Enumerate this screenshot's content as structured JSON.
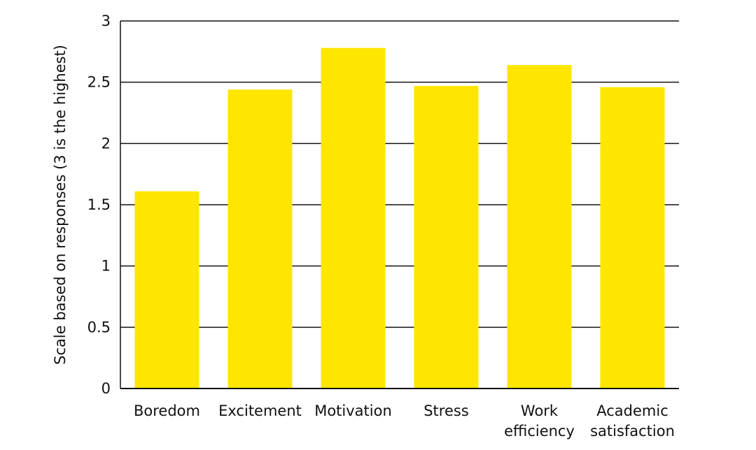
{
  "chart_data": {
    "type": "bar",
    "categories": [
      [
        "Boredom"
      ],
      [
        "Excitement"
      ],
      [
        "Motivation"
      ],
      [
        "Stress"
      ],
      [
        "Work",
        "efficiency"
      ],
      [
        "Academic",
        "satisfaction"
      ]
    ],
    "values": [
      1.61,
      2.44,
      2.78,
      2.47,
      2.64,
      2.46
    ],
    "ylabel": "Scale based on responses  (3 is the highest)",
    "xlabel": "",
    "ylim": [
      0,
      3
    ],
    "yticks": [
      "0",
      "0.5",
      "1",
      "1.5",
      "2",
      "2.5",
      "3"
    ],
    "grid": true,
    "colors": {
      "bar": "#FFE600",
      "grid": "#111111",
      "text": "#111111"
    }
  }
}
